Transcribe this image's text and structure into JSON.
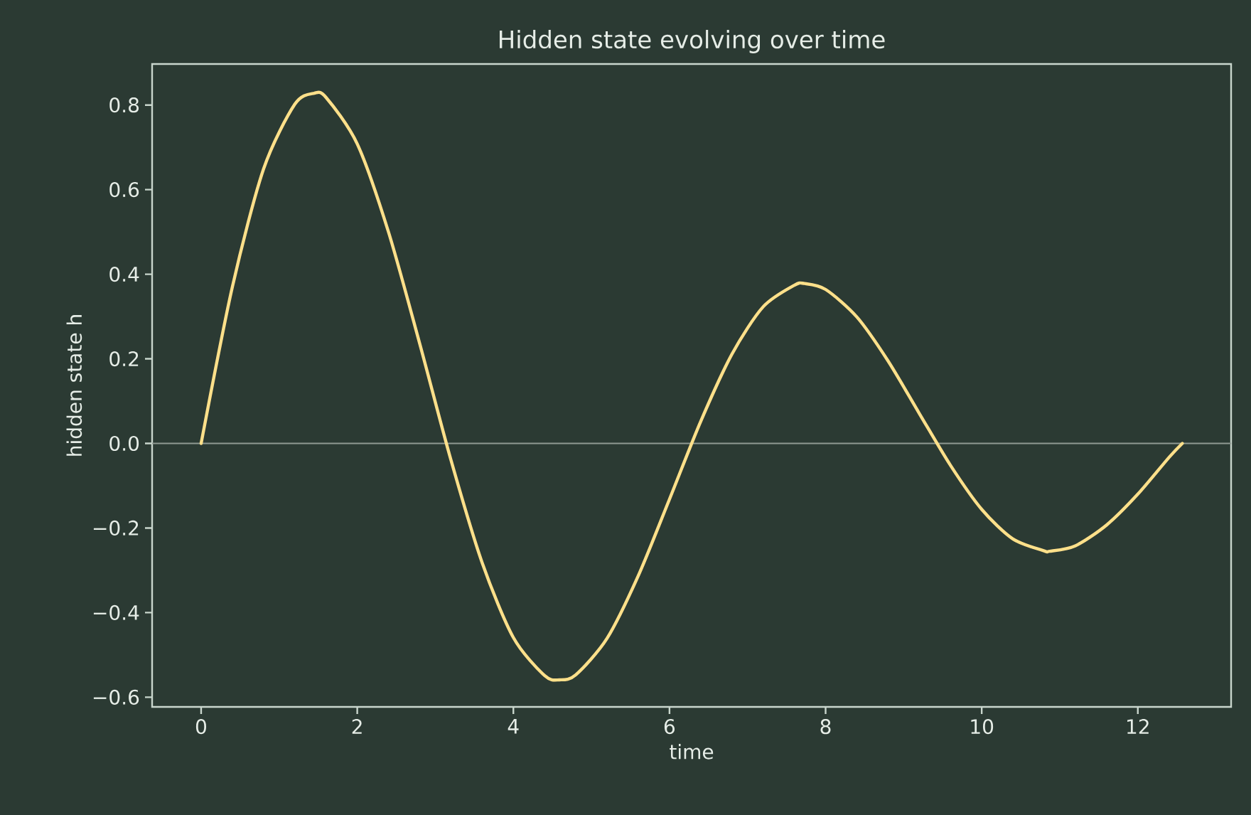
{
  "chart_data": {
    "type": "line",
    "title": "Hidden state evolving over time",
    "xlabel": "time",
    "ylabel": "hidden state h",
    "x": [
      0,
      0.4,
      0.8,
      1.2,
      1.45,
      1.6,
      2.0,
      2.4,
      2.8,
      3.2,
      3.6,
      4.0,
      4.4,
      4.59,
      4.8,
      5.2,
      5.6,
      6.0,
      6.4,
      6.8,
      7.2,
      7.6,
      7.73,
      8.0,
      8.4,
      8.8,
      9.2,
      9.6,
      10.0,
      10.4,
      10.8,
      10.87,
      11.2,
      11.6,
      12.0,
      12.4,
      12.57
    ],
    "series": [
      {
        "color": "#ffe08a",
        "values": [
          0,
          0.37,
          0.649,
          0.802,
          0.828,
          0.818,
          0.708,
          0.5,
          0.236,
          -0.039,
          -0.282,
          -0.459,
          -0.549,
          -0.559,
          -0.547,
          -0.461,
          -0.313,
          -0.132,
          0.052,
          0.211,
          0.323,
          0.374,
          0.378,
          0.364,
          0.299,
          0.195,
          0.071,
          -0.052,
          -0.156,
          -0.226,
          -0.254,
          -0.255,
          -0.242,
          -0.193,
          -0.12,
          -0.033,
          0
        ]
      }
    ],
    "xlim": [
      -0.628,
      13.195
    ],
    "ylim": [
      -0.623,
      0.897
    ],
    "xticks": [
      0,
      2,
      4,
      6,
      8,
      10,
      12
    ],
    "yticks": [
      {
        "value": -0.6,
        "label": "−0.6"
      },
      {
        "value": -0.4,
        "label": "−0.4"
      },
      {
        "value": -0.2,
        "label": "−0.2"
      },
      {
        "value": 0,
        "label": "0.0"
      },
      {
        "value": 0.2,
        "label": "0.2"
      },
      {
        "value": 0.4,
        "label": "0.4"
      },
      {
        "value": 0.6,
        "label": "0.6"
      },
      {
        "value": 0.8,
        "label": "0.8"
      }
    ],
    "ref_lines": [
      {
        "axis": "y",
        "value": 0,
        "color": "#8f9a93"
      }
    ],
    "grid": false,
    "marker": "none",
    "line_style": "solid"
  }
}
